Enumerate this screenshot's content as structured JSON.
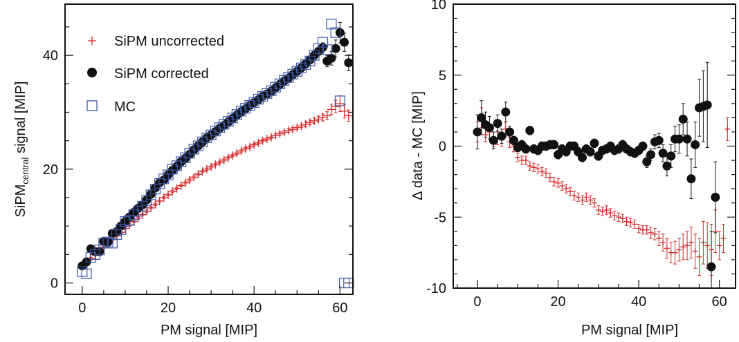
{
  "colors": {
    "uncorrected": "#d42a2a",
    "corrected": "#111111",
    "mc": "#3b57a6",
    "axis": "#111111"
  },
  "chart_data": [
    {
      "type": "scatter",
      "title": "",
      "xlabel": "PM signal [MIP]",
      "ylabel": {
        "main": "SiPM",
        "sub": "central",
        "rest": " signal  [MIP]"
      },
      "xlim": [
        -4,
        63
      ],
      "ylim": [
        -2,
        49
      ],
      "xticks": [
        0,
        20,
        40,
        60
      ],
      "yticks": [
        0,
        20,
        40
      ],
      "grid": false,
      "legend_position": "top-left",
      "legend": [
        {
          "label": "SiPM uncorrected",
          "marker": "plus",
          "color": "#d42a2a"
        },
        {
          "label": "SiPM corrected",
          "marker": "circle",
          "color": "#111111"
        },
        {
          "label": "MC",
          "marker": "square",
          "color": "#3b57a6"
        }
      ],
      "series": [
        {
          "name": "SiPM uncorrected",
          "marker": "plus",
          "color": "#d42a2a",
          "x": [
            0,
            1,
            2,
            3,
            4,
            5,
            6,
            7,
            8,
            9,
            10,
            11,
            12,
            13,
            14,
            15,
            16,
            17,
            18,
            19,
            20,
            21,
            22,
            23,
            24,
            25,
            26,
            27,
            28,
            29,
            30,
            31,
            32,
            33,
            34,
            35,
            36,
            37,
            38,
            39,
            40,
            41,
            42,
            43,
            44,
            45,
            46,
            47,
            48,
            49,
            50,
            51,
            52,
            53,
            54,
            55,
            56,
            57,
            58,
            59,
            60,
            61,
            62
          ],
          "y": [
            3.0,
            3.5,
            4.3,
            5.0,
            5.6,
            6.3,
            6.9,
            7.6,
            8.3,
            8.9,
            9.6,
            10.2,
            10.8,
            11.4,
            12.0,
            12.6,
            13.2,
            13.8,
            14.4,
            15.0,
            15.5,
            16.1,
            16.6,
            17.1,
            17.6,
            18.1,
            18.6,
            19.1,
            19.6,
            20.0,
            20.4,
            20.8,
            21.2,
            21.6,
            22.0,
            22.4,
            22.8,
            23.2,
            23.6,
            23.9,
            24.3,
            24.6,
            25.0,
            25.3,
            25.6,
            25.9,
            26.2,
            26.5,
            26.8,
            27.0,
            27.3,
            27.6,
            27.9,
            28.2,
            28.5,
            28.8,
            29.1,
            29.4,
            30.5,
            31.0,
            31.5,
            30.2,
            29.4
          ],
          "err": [
            0.2,
            0.2,
            0.2,
            0.2,
            0.2,
            0.2,
            0.2,
            0.2,
            0.2,
            0.2,
            0.2,
            0.2,
            0.2,
            0.2,
            0.2,
            0.2,
            0.2,
            0.2,
            0.2,
            0.2,
            0.2,
            0.2,
            0.2,
            0.2,
            0.2,
            0.2,
            0.2,
            0.2,
            0.2,
            0.2,
            0.2,
            0.2,
            0.2,
            0.2,
            0.2,
            0.2,
            0.2,
            0.2,
            0.2,
            0.2,
            0.2,
            0.2,
            0.2,
            0.2,
            0.2,
            0.3,
            0.3,
            0.3,
            0.3,
            0.3,
            0.3,
            0.3,
            0.4,
            0.4,
            0.5,
            0.5,
            0.6,
            0.7,
            0.9,
            1.1,
            1.4,
            1.2,
            1.0
          ]
        },
        {
          "name": "SiPM corrected",
          "marker": "circle",
          "color": "#111111",
          "x": [
            0,
            1,
            2,
            3,
            4,
            5,
            6,
            7,
            8,
            9,
            10,
            11,
            12,
            13,
            14,
            15,
            16,
            17,
            18,
            19,
            20,
            21,
            22,
            23,
            24,
            25,
            26,
            27,
            28,
            29,
            30,
            31,
            32,
            33,
            34,
            35,
            36,
            37,
            38,
            39,
            40,
            41,
            42,
            43,
            44,
            45,
            46,
            47,
            48,
            49,
            50,
            51,
            52,
            53,
            54,
            55,
            56,
            57,
            58,
            59,
            60,
            61,
            62
          ],
          "y": [
            3.0,
            3.7,
            6.0,
            5.5,
            5.5,
            7.3,
            7.2,
            8.7,
            9.0,
            10.0,
            10.8,
            11.6,
            12.4,
            13.1,
            13.7,
            14.6,
            15.6,
            16.7,
            17.6,
            18.1,
            19.0,
            19.8,
            20.5,
            21.3,
            21.9,
            22.6,
            23.4,
            24.1,
            24.8,
            25.5,
            26.0,
            26.6,
            27.2,
            27.7,
            28.3,
            28.9,
            29.5,
            30.1,
            30.6,
            31.2,
            31.7,
            32.2,
            32.8,
            33.2,
            33.7,
            34.3,
            34.9,
            35.5,
            36.0,
            36.6,
            37.2,
            37.8,
            38.5,
            39.2,
            40.0,
            40.7,
            41.4,
            39.0,
            39.5,
            41.2,
            44.0,
            42.3,
            38.7
          ],
          "err": [
            0.2,
            0.2,
            0.3,
            0.3,
            0.3,
            0.3,
            0.3,
            0.3,
            0.2,
            0.2,
            0.2,
            0.2,
            0.2,
            0.2,
            0.2,
            0.2,
            0.2,
            0.2,
            0.2,
            0.2,
            0.2,
            0.2,
            0.2,
            0.2,
            0.2,
            0.2,
            0.2,
            0.2,
            0.2,
            0.2,
            0.2,
            0.2,
            0.2,
            0.2,
            0.2,
            0.2,
            0.2,
            0.2,
            0.2,
            0.2,
            0.2,
            0.2,
            0.2,
            0.2,
            0.2,
            0.3,
            0.3,
            0.3,
            0.3,
            0.3,
            0.4,
            0.4,
            0.5,
            0.5,
            0.6,
            0.7,
            0.8,
            1.0,
            1.2,
            1.5,
            1.8,
            1.6,
            1.4
          ]
        },
        {
          "name": "MC",
          "marker": "square",
          "color": "#3b57a6",
          "x": [
            0,
            1,
            2,
            3,
            4,
            5,
            6,
            7,
            8,
            9,
            10,
            11,
            12,
            13,
            14,
            15,
            16,
            17,
            18,
            19,
            20,
            21,
            22,
            23,
            24,
            25,
            26,
            27,
            28,
            29,
            30,
            31,
            32,
            33,
            34,
            35,
            36,
            37,
            38,
            39,
            40,
            41,
            42,
            43,
            44,
            45,
            46,
            47,
            48,
            49,
            50,
            51,
            52,
            53,
            54,
            55,
            56,
            57,
            58,
            59,
            60,
            61,
            62
          ],
          "y": [
            2.0,
            1.6,
            4.5,
            5.0,
            5.8,
            7.0,
            7.2,
            7.0,
            8.5,
            9.4,
            10.8,
            11.0,
            12.0,
            12.6,
            13.5,
            14.5,
            15.5,
            16.5,
            17.5,
            18.3,
            19.0,
            20.0,
            20.6,
            21.3,
            22.0,
            22.8,
            23.5,
            24.1,
            24.8,
            25.5,
            26.0,
            26.7,
            27.3,
            27.9,
            28.4,
            29.0,
            29.6,
            30.2,
            30.7,
            31.2,
            31.7,
            32.3,
            32.8,
            33.3,
            33.8,
            34.4,
            35.0,
            35.6,
            36.1,
            36.7,
            37.2,
            37.8,
            38.4,
            39.0,
            40.0,
            41.2,
            42.3,
            41.0,
            45.5,
            44.0,
            32.0,
            0.0,
            0.0
          ],
          "err": []
        }
      ]
    },
    {
      "type": "scatter",
      "title": "",
      "xlabel": "PM signal [MIP]",
      "ylabel": "Δ data - MC [MIP]",
      "xlim": [
        -6,
        64
      ],
      "ylim": [
        -10,
        10
      ],
      "xticks": [
        0,
        20,
        40,
        60
      ],
      "yticks": [
        -10,
        -5,
        0,
        5,
        10
      ],
      "grid": false,
      "series": [
        {
          "name": "SiPM uncorrected",
          "marker": "plus",
          "color": "#d42a2a",
          "x": [
            0,
            1,
            2,
            3,
            4,
            5,
            6,
            7,
            8,
            9,
            10,
            11,
            12,
            13,
            14,
            15,
            16,
            17,
            18,
            19,
            20,
            21,
            22,
            23,
            24,
            25,
            26,
            27,
            28,
            29,
            30,
            31,
            32,
            33,
            34,
            35,
            36,
            37,
            38,
            39,
            40,
            41,
            42,
            43,
            44,
            45,
            46,
            47,
            48,
            49,
            50,
            51,
            52,
            53,
            54,
            55,
            56,
            57,
            58,
            59,
            60,
            61,
            62
          ],
          "y": [
            1.0,
            2.0,
            0.8,
            1.0,
            0.5,
            0.6,
            0.5,
            1.2,
            0.3,
            0.0,
            -0.8,
            -1.0,
            -1.0,
            -1.4,
            -1.5,
            -1.6,
            -1.8,
            -1.9,
            -2.2,
            -2.5,
            -2.6,
            -2.8,
            -3.0,
            -3.2,
            -3.5,
            -3.6,
            -3.8,
            -3.6,
            -3.8,
            -4.0,
            -4.5,
            -4.6,
            -4.5,
            -4.7,
            -4.9,
            -5.0,
            -5.1,
            -5.3,
            -5.4,
            -5.5,
            -5.8,
            -5.9,
            -5.9,
            -6.1,
            -6.2,
            -6.5,
            -6.8,
            -7.2,
            -7.5,
            -7.5,
            -7.3,
            -7.1,
            -7.0,
            -6.8,
            -7.4,
            -7.8,
            -6.8,
            -7.0,
            -7.3,
            -6.0,
            -7.0,
            -6.5,
            1.2
          ],
          "err": [
            0.7,
            0.7,
            0.5,
            0.5,
            0.5,
            0.5,
            0.5,
            0.5,
            0.4,
            0.4,
            0.3,
            0.3,
            0.3,
            0.3,
            0.3,
            0.3,
            0.3,
            0.3,
            0.3,
            0.3,
            0.3,
            0.3,
            0.3,
            0.3,
            0.3,
            0.3,
            0.3,
            0.3,
            0.3,
            0.3,
            0.3,
            0.3,
            0.3,
            0.3,
            0.3,
            0.3,
            0.3,
            0.3,
            0.3,
            0.3,
            0.3,
            0.3,
            0.3,
            0.4,
            0.4,
            0.5,
            0.6,
            0.7,
            0.7,
            0.8,
            0.8,
            0.9,
            1.0,
            1.1,
            1.2,
            1.3,
            1.5,
            1.6,
            1.8,
            1.5,
            1.0,
            1.0,
            0.8
          ]
        },
        {
          "name": "SiPM corrected",
          "marker": "circle",
          "color": "#111111",
          "x": [
            0,
            1,
            2,
            3,
            4,
            5,
            6,
            7,
            8,
            9,
            10,
            11,
            12,
            13,
            14,
            15,
            16,
            17,
            18,
            19,
            20,
            21,
            22,
            23,
            24,
            25,
            26,
            27,
            28,
            29,
            30,
            31,
            32,
            33,
            34,
            35,
            36,
            37,
            38,
            39,
            40,
            41,
            42,
            43,
            44,
            45,
            46,
            47,
            48,
            49,
            50,
            51,
            52,
            53,
            54,
            55,
            56,
            57,
            58,
            59
          ],
          "y": [
            1.0,
            2.0,
            1.5,
            1.3,
            0.4,
            1.6,
            0.7,
            2.4,
            1.0,
            0.4,
            -0.1,
            0.1,
            -0.2,
            1.1,
            -0.2,
            -0.3,
            0.0,
            0.0,
            0.1,
            0.1,
            -0.6,
            -0.2,
            -0.4,
            0.0,
            0.0,
            -0.4,
            -0.8,
            -0.2,
            -0.4,
            0.2,
            -0.7,
            -0.3,
            -0.2,
            0.0,
            -0.3,
            -0.2,
            0.1,
            -0.2,
            -0.4,
            -0.5,
            -0.3,
            0.0,
            -1.1,
            -0.6,
            0.3,
            0.4,
            -0.5,
            -1.4,
            -0.7,
            0.5,
            0.5,
            1.9,
            0.5,
            -2.3,
            0.1,
            2.7,
            2.8,
            2.9,
            -8.5,
            -3.6
          ],
          "err": [
            1.2,
            1.2,
            0.9,
            0.8,
            0.6,
            0.6,
            0.5,
            0.7,
            0.4,
            0.3,
            0.3,
            0.3,
            0.3,
            0.3,
            0.3,
            0.3,
            0.3,
            0.3,
            0.3,
            0.3,
            0.3,
            0.3,
            0.3,
            0.3,
            0.3,
            0.3,
            0.3,
            0.3,
            0.3,
            0.3,
            0.3,
            0.3,
            0.3,
            0.3,
            0.3,
            0.3,
            0.3,
            0.3,
            0.3,
            0.3,
            0.3,
            0.3,
            0.4,
            0.4,
            0.5,
            0.5,
            0.6,
            0.7,
            0.8,
            0.9,
            1.0,
            1.1,
            1.2,
            1.4,
            1.6,
            2.0,
            2.5,
            3.0,
            2.5,
            2.5
          ]
        }
      ]
    }
  ]
}
